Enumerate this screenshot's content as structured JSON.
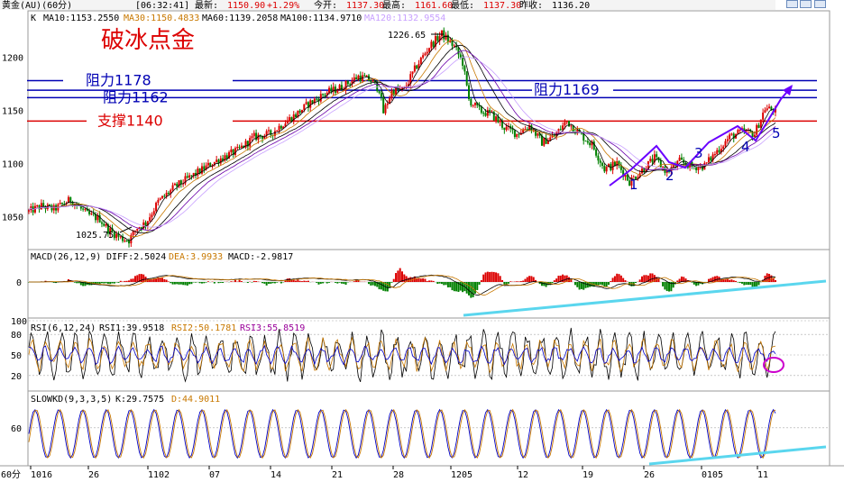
{
  "header": {
    "symbol": "黄金(AU)(60分)",
    "time": "[06:32:41]",
    "latest_label": "最新:",
    "latest": "1150.90",
    "change": "+1.29%",
    "open_label": "今开:",
    "open": "1137.30",
    "high_label": "最高:",
    "high": "1161.60",
    "low_label": "最低:",
    "low": "1137.30",
    "prev_label": "昨收:",
    "prev": "1136.20"
  },
  "price_panel": {
    "k_label": "K",
    "ma": [
      {
        "label": "MA10:1153.2550",
        "color": "#000000"
      },
      {
        "label": "MA30:1150.4833",
        "color": "#c87800"
      },
      {
        "label": "MA60:1139.2058",
        "color": "#000000"
      },
      {
        "label": "MA100:1134.9710",
        "color": "#000000"
      },
      {
        "label": "MA120:1132.9554",
        "color": "#c8a0ff"
      }
    ],
    "title": "破冰点金",
    "high_marker": "1226.65",
    "low_marker": "1025.75",
    "levels": [
      {
        "label": "阻力1178",
        "value": 1178,
        "color": "#0000b4"
      },
      {
        "label": "阻力1169",
        "value": 1169,
        "color": "#0000b4"
      },
      {
        "label": "阻力1162",
        "value": 1162,
        "color": "#0000b4"
      },
      {
        "label": "支撑1140",
        "value": 1140,
        "color": "#dc0000"
      }
    ],
    "wave_labels": [
      "1",
      "2",
      "3",
      "4",
      "5"
    ]
  },
  "macd_panel": {
    "label": "MACD(26,12,9)",
    "diff": "DIFF:2.5024",
    "dea": "DEA:3.9933",
    "macd": "MACD:-2.9817"
  },
  "rsi_panel": {
    "label": "RSI(6,12,24)",
    "rsi1": "RSI1:39.9518",
    "rsi2": "RSI2:50.1781",
    "rsi3": "RSI3:55.8519"
  },
  "kd_panel": {
    "label": "SLOWKD(9,3,3,5)",
    "k": "K:29.7575",
    "d": "D:44.9011"
  },
  "period_label": "60分",
  "colors": {
    "up": "#dc0000",
    "down": "#008000",
    "resistance": "#0000b4",
    "support": "#dc0000",
    "trend": "#5ad6ee",
    "wave": "#6a00ff"
  },
  "chart_data": {
    "type": "candlestick",
    "y_axis_ticks": [
      1050,
      1100,
      1150,
      1200
    ],
    "ylim": [
      1020,
      1242
    ],
    "x_tick_labels": [
      "1016",
      "26",
      "1102",
      "07",
      "14",
      "21",
      "28",
      "1205",
      "12",
      "19",
      "26",
      "0105",
      "11"
    ],
    "macd_ticks": [
      0
    ],
    "rsi_ticks": [
      20,
      50,
      80,
      100
    ],
    "kd_ticks": [
      60
    ],
    "price_path": [
      {
        "x": 0,
        "y": 1055
      },
      {
        "x": 6,
        "y": 1060
      },
      {
        "x": 12,
        "y": 1057
      },
      {
        "x": 20,
        "y": 1066
      },
      {
        "x": 28,
        "y": 1052
      },
      {
        "x": 34,
        "y": 1048
      },
      {
        "x": 38,
        "y": 1038
      },
      {
        "x": 44,
        "y": 1030
      },
      {
        "x": 48,
        "y": 1028
      },
      {
        "x": 52,
        "y": 1040
      },
      {
        "x": 56,
        "y": 1044
      },
      {
        "x": 62,
        "y": 1064
      },
      {
        "x": 70,
        "y": 1078
      },
      {
        "x": 78,
        "y": 1088
      },
      {
        "x": 86,
        "y": 1098
      },
      {
        "x": 92,
        "y": 1105
      },
      {
        "x": 100,
        "y": 1112
      },
      {
        "x": 108,
        "y": 1125
      },
      {
        "x": 116,
        "y": 1128
      },
      {
        "x": 122,
        "y": 1138
      },
      {
        "x": 128,
        "y": 1146
      },
      {
        "x": 134,
        "y": 1156
      },
      {
        "x": 142,
        "y": 1166
      },
      {
        "x": 150,
        "y": 1172
      },
      {
        "x": 158,
        "y": 1182
      },
      {
        "x": 164,
        "y": 1178
      },
      {
        "x": 168,
        "y": 1170
      },
      {
        "x": 170,
        "y": 1148
      },
      {
        "x": 174,
        "y": 1168
      },
      {
        "x": 180,
        "y": 1170
      },
      {
        "x": 186,
        "y": 1192
      },
      {
        "x": 192,
        "y": 1210
      },
      {
        "x": 198,
        "y": 1222
      },
      {
        "x": 204,
        "y": 1210
      },
      {
        "x": 208,
        "y": 1195
      },
      {
        "x": 211,
        "y": 1160
      },
      {
        "x": 216,
        "y": 1150
      },
      {
        "x": 222,
        "y": 1146
      },
      {
        "x": 228,
        "y": 1134
      },
      {
        "x": 234,
        "y": 1128
      },
      {
        "x": 240,
        "y": 1136
      },
      {
        "x": 246,
        "y": 1120
      },
      {
        "x": 252,
        "y": 1126
      },
      {
        "x": 258,
        "y": 1140
      },
      {
        "x": 264,
        "y": 1128
      },
      {
        "x": 270,
        "y": 1118
      },
      {
        "x": 276,
        "y": 1095
      },
      {
        "x": 282,
        "y": 1100
      },
      {
        "x": 288,
        "y": 1083
      },
      {
        "x": 294,
        "y": 1094
      },
      {
        "x": 300,
        "y": 1105
      },
      {
        "x": 306,
        "y": 1092
      },
      {
        "x": 312,
        "y": 1102
      },
      {
        "x": 318,
        "y": 1097
      },
      {
        "x": 324,
        "y": 1098
      },
      {
        "x": 330,
        "y": 1112
      },
      {
        "x": 336,
        "y": 1125
      },
      {
        "x": 342,
        "y": 1130
      },
      {
        "x": 348,
        "y": 1128
      },
      {
        "x": 353,
        "y": 1152
      },
      {
        "x": 358,
        "y": 1150
      }
    ]
  }
}
